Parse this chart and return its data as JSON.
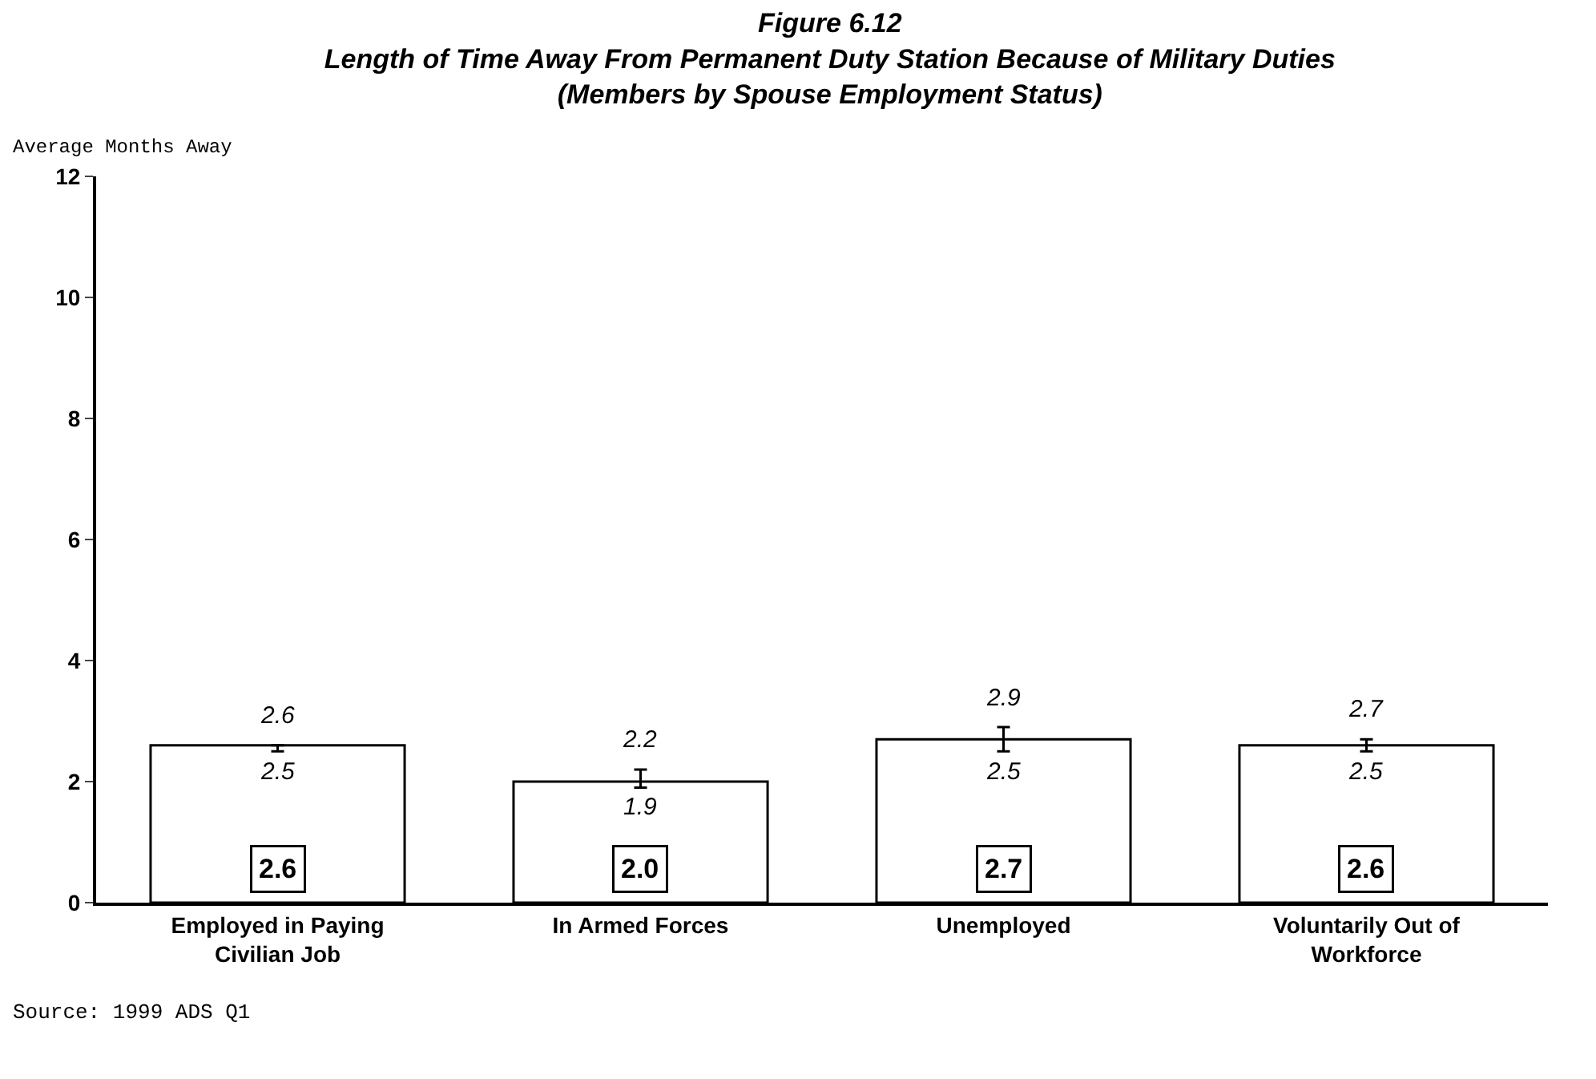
{
  "chart_data": {
    "type": "bar",
    "title": "Figure 6.12",
    "subtitle": "Length of Time Away From Permanent Duty Station Because of Military Duties\n(Members by Spouse Employment Status)",
    "ylabel": "Average Months Away",
    "categories": [
      "Employed in Paying\nCivilian Job",
      "In Armed Forces",
      "Unemployed",
      "Voluntarily Out of\nWorkforce"
    ],
    "values": [
      2.6,
      2.0,
      2.7,
      2.6
    ],
    "color": "#ffffff",
    "errors": [
      [
        2.5,
        2.6
      ],
      [
        1.9,
        2.2
      ],
      [
        2.5,
        2.9
      ],
      [
        2.5,
        2.7
      ]
    ],
    "value_labels": [
      "2.6",
      "2.0",
      "2.7",
      "2.6"
    ],
    "annotations": [
      {
        "text": "2.6",
        "x": "Employed in Paying\nCivilian Job",
        "y": 2.6
      },
      {
        "text": "2.2",
        "x": "In Armed Forces",
        "y": 2.2
      },
      {
        "text": "2.9",
        "x": "Unemployed",
        "y": 2.9
      },
      {
        "text": "2.7",
        "x": "Voluntarily Out of\nWorkforce",
        "y": 2.7
      },
      {
        "text": "2.5",
        "x": "Employed in Paying\nCivilian Job",
        "y": 2.5
      },
      {
        "text": "1.9",
        "x": "In Armed Forces",
        "y": 1.9
      },
      {
        "text": "2.5",
        "x": "Unemployed",
        "y": 2.5
      },
      {
        "text": "2.5",
        "x": "Voluntarily Out of\nWorkforce",
        "y": 2.5
      },
      "Source: 1999 ADS Q1"
    ],
    "ylim": [
      0,
      12
    ],
    "yticks": [
      0,
      2,
      4,
      6,
      8,
      10,
      12
    ],
    "legend": false
  }
}
